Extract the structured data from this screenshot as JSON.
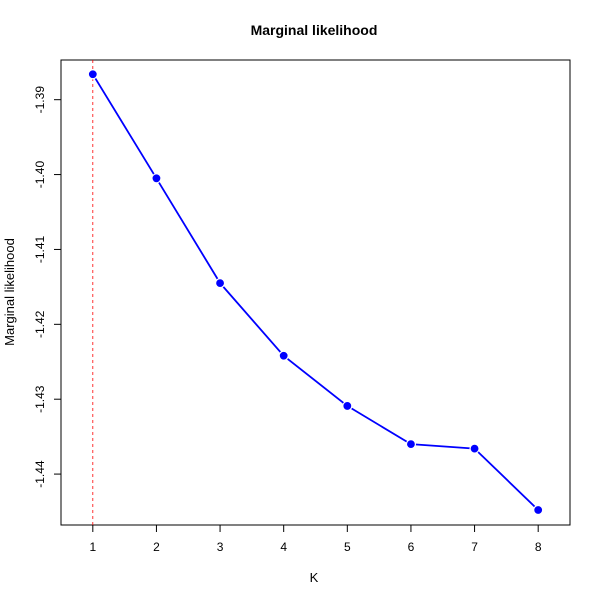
{
  "chart_data": {
    "type": "line",
    "title": "Marginal likelihood",
    "xlabel": "K",
    "ylabel": "Marginal likelihood",
    "x": [
      1,
      2,
      3,
      4,
      5,
      6,
      7,
      8
    ],
    "series": [
      {
        "values": [
          -1.3866,
          -1.4005,
          -1.4145,
          -1.4242,
          -1.4309,
          -1.436,
          -1.4366,
          -1.4448
        ]
      }
    ],
    "xticks": [
      1,
      2,
      3,
      4,
      5,
      6,
      7,
      8
    ],
    "yticks": [
      -1.44,
      -1.43,
      -1.42,
      -1.41,
      -1.4,
      -1.39
    ],
    "ytick_labels": [
      "-1.44",
      "-1.43",
      "-1.42",
      "-1.41",
      "-1.40",
      "-1.39"
    ],
    "xlim": [
      0.5,
      8.5
    ],
    "ylim": [
      -1.4468,
      -1.3847
    ],
    "reference_line_x": 1,
    "grid": false,
    "colors": {
      "series": "#0000ff",
      "reference": "#ff0000",
      "axis": "#000000"
    }
  }
}
